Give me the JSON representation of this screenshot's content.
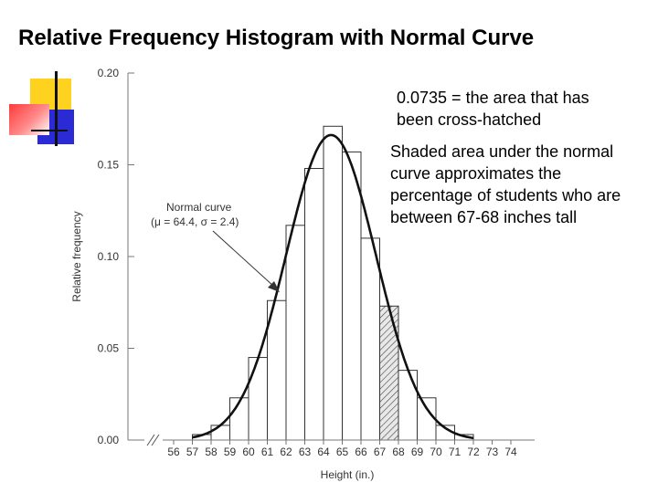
{
  "slide": {
    "title": "Relative Frequency Histogram with Normal Curve",
    "annotation_area": [
      "0.0735 = the area that has",
      "been cross-hatched"
    ],
    "annotation_shaded": [
      "Shaded area under the normal",
      "curve approximates the",
      "percentage of students who are",
      "between 67-68 inches tall"
    ]
  },
  "chart_data": {
    "type": "bar",
    "xlabel": "Height (in.)",
    "ylabel": "Relative frequency",
    "x_ticks": [
      "56",
      "57",
      "58",
      "59",
      "60",
      "61",
      "62",
      "63",
      "64",
      "65",
      "66",
      "67",
      "68",
      "69",
      "70",
      "71",
      "72",
      "73",
      "74"
    ],
    "y_ticks": [
      "0.00",
      "0.05",
      "0.10",
      "0.15",
      "0.20"
    ],
    "ylim": [
      0,
      0.2
    ],
    "bins": [
      {
        "from": 57,
        "to": 58,
        "value": 0.003
      },
      {
        "from": 58,
        "to": 59,
        "value": 0.008
      },
      {
        "from": 59,
        "to": 60,
        "value": 0.023
      },
      {
        "from": 60,
        "to": 61,
        "value": 0.045
      },
      {
        "from": 61,
        "to": 62,
        "value": 0.076
      },
      {
        "from": 62,
        "to": 63,
        "value": 0.117
      },
      {
        "from": 63,
        "to": 64,
        "value": 0.148
      },
      {
        "from": 64,
        "to": 65,
        "value": 0.171
      },
      {
        "from": 65,
        "to": 66,
        "value": 0.157
      },
      {
        "from": 66,
        "to": 67,
        "value": 0.11
      },
      {
        "from": 67,
        "to": 68,
        "value": 0.073
      },
      {
        "from": 68,
        "to": 69,
        "value": 0.038
      },
      {
        "from": 69,
        "to": 70,
        "value": 0.023
      },
      {
        "from": 70,
        "to": 71,
        "value": 0.008
      },
      {
        "from": 71,
        "to": 72,
        "value": 0.003
      }
    ],
    "hatched_bin": [
      67,
      68
    ],
    "normal_curve": {
      "mu": 64.4,
      "sigma": 2.4
    },
    "curve_label": "Normal curve",
    "curve_params_label": "(μ = 64.4, σ = 2.4)",
    "grid": false,
    "colors": {
      "bars_fill": "#ffffff",
      "bars_stroke": "#333333",
      "curve": "#111111",
      "hatch": "#444444"
    }
  }
}
